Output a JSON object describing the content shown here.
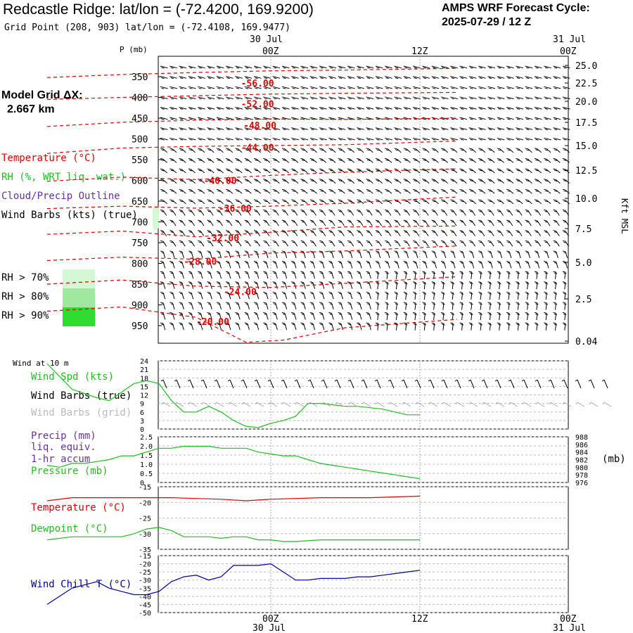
{
  "header": {
    "title": "Redcastle Ridge:  lat/lon = (-72.4200, 169.9200)",
    "subtitle": "Grid Point (208, 903) lat/lon = (-72.4108, 169.9477)",
    "cycle_line1": "AMPS WRF Forecast Cycle:",
    "cycle_line2": "2025-07-29 / 12  Z",
    "grid_dx_line1": "Model Grid ΔX:",
    "grid_dx_line2": "2.667 km"
  },
  "colors": {
    "temperature": "#dd0000",
    "rh": "#22bb22",
    "cloud": "#663399",
    "wind": "#000000",
    "grid_wind": "#aaaaaa",
    "pressure": "#22bb22",
    "dewpoint": "#22bb22",
    "windchill": "#000099",
    "rh70": "#d4f7d4",
    "rh80": "#a0e8a0",
    "rh90": "#2fdc2f"
  },
  "upper_panel": {
    "p_label": "P (mb)",
    "time_top": [
      {
        "day": "30 Jul",
        "hour": "00Z"
      },
      {
        "day": "",
        "hour": "12Z"
      },
      {
        "day": "31 Jul",
        "hour": "00Z"
      }
    ],
    "right_axis_label": "Kft MSL",
    "legend": {
      "temperature": "Temperature (°C)",
      "rh": "RH (%, WRT liq. wat.)",
      "cloud": "Cloud/Precip Outline",
      "wind": "Wind Barbs (kts) (true)",
      "rh70": "RH > 70%",
      "rh80": "RH > 80%",
      "rh90": "RH > 90%"
    }
  },
  "wind10m": {
    "title": "Wind at 10 m",
    "spd_label": "Wind Spd (kts)",
    "barbs_true": "Wind Barbs (true)",
    "barbs_grid": "Wind Barbs (grid)"
  },
  "precip_panel": {
    "label1": "Precip (mm)",
    "label2": "liq. equiv.",
    "label3": "1-hr accum",
    "label4": "Pressure (mb)",
    "right_unit": "(mb)"
  },
  "temp_panel": {
    "label1": "Temperature (°C)",
    "label2": "Dewpoint (°C)"
  },
  "windchill_panel": {
    "label": "Wind Chill T (°C)"
  },
  "bottom_time": [
    {
      "hour": "00Z",
      "day": "30 Jul"
    },
    {
      "hour": "12Z",
      "day": ""
    },
    {
      "hour": "00Z",
      "day": "31 Jul"
    }
  ],
  "chart_data": [
    {
      "type": "contour",
      "name": "upper-air cross-section",
      "x_unit": "hours from 2025-07-29 12Z",
      "xlim": [
        -6,
        27
      ],
      "y_unit": "mb",
      "y_ticks": [
        350,
        400,
        450,
        500,
        550,
        600,
        650,
        700,
        750,
        800,
        850,
        900,
        950
      ],
      "right_ticks": [
        "25.0",
        "22.5",
        "20.0",
        "17.5",
        "15.0",
        "12.5",
        "10.0",
        "7.5",
        "5.0",
        "2.5",
        "0.04"
      ],
      "isotherms": [
        {
          "value": "-56.00",
          "label_x": 9.6,
          "label_p": 365,
          "points": [
            [
              -6,
              352
            ],
            [
              0,
              345
            ],
            [
              6,
              340
            ],
            [
              12,
              336
            ],
            [
              18,
              334
            ],
            [
              27,
              330
            ]
          ]
        },
        {
          "value": "-52.00",
          "label_x": 9.6,
          "label_p": 415,
          "points": [
            [
              -6,
              405
            ],
            [
              0,
              400
            ],
            [
              6,
              396
            ],
            [
              12,
              392
            ],
            [
              18,
              390
            ],
            [
              27,
              388
            ]
          ]
        },
        {
          "value": "-48.00",
          "label_x": 9.8,
          "label_p": 467,
          "points": [
            [
              -6,
              470
            ],
            [
              0,
              460
            ],
            [
              6,
              455
            ],
            [
              12,
              452
            ],
            [
              18,
              453
            ],
            [
              27,
              450
            ]
          ]
        },
        {
          "value": "-44.00",
          "label_x": 9.6,
          "label_p": 520,
          "points": [
            [
              -6,
              535
            ],
            [
              0,
              522
            ],
            [
              6,
              518
            ],
            [
              12,
              516
            ],
            [
              18,
              514
            ],
            [
              27,
              505
            ]
          ]
        },
        {
          "value": "-40.00",
          "label_x": 6.6,
          "label_p": 600,
          "points": [
            [
              -6,
              602
            ],
            [
              0,
              592
            ],
            [
              6,
              598
            ],
            [
              12,
              588
            ],
            [
              18,
              580
            ],
            [
              27,
              572
            ]
          ]
        },
        {
          "value": "-36.00",
          "label_x": 7.8,
          "label_p": 667,
          "points": [
            [
              -6,
              668
            ],
            [
              0,
              662
            ],
            [
              6,
              667
            ],
            [
              12,
              662
            ],
            [
              18,
              655
            ],
            [
              27,
              640
            ]
          ]
        },
        {
          "value": "-32.00",
          "label_x": 6.8,
          "label_p": 738,
          "points": [
            [
              -6,
              730
            ],
            [
              0,
              722
            ],
            [
              6,
              736
            ],
            [
              12,
              725
            ],
            [
              18,
              712
            ],
            [
              27,
              710
            ]
          ]
        },
        {
          "value": "-28.00",
          "label_x": 5.0,
          "label_p": 795,
          "points": [
            [
              -6,
              793
            ],
            [
              0,
              785
            ],
            [
              6,
              790
            ],
            [
              12,
              775
            ],
            [
              18,
              770
            ],
            [
              27,
              758
            ]
          ]
        },
        {
          "value": "-24.00",
          "label_x": 8.2,
          "label_p": 868,
          "points": [
            [
              -6,
              850
            ],
            [
              0,
              840
            ],
            [
              6,
              855
            ],
            [
              12,
              858
            ],
            [
              18,
              848
            ],
            [
              27,
              832
            ]
          ]
        },
        {
          "value": "-20.00",
          "label_x": 6.0,
          "label_p": 940,
          "points": [
            [
              -6,
              915
            ],
            [
              0,
              905
            ],
            [
              6,
              930
            ],
            [
              10,
              990
            ],
            [
              13,
              985
            ],
            [
              18,
              955
            ],
            [
              27,
              935
            ]
          ]
        }
      ],
      "rh_over_70": [
        {
          "x": [
            2.5,
            3.0
          ],
          "p": [
            660,
            720
          ]
        }
      ]
    },
    {
      "type": "line",
      "name": "Wind Spd (kts)",
      "ylim": [
        0,
        24
      ],
      "yticks": [
        0,
        3,
        6,
        9,
        12,
        15,
        18,
        21,
        24
      ],
      "series": [
        {
          "name": "Wind Spd (kts)",
          "points": [
            [
              -6,
              23
            ],
            [
              -4,
              14
            ],
            [
              -2,
              11
            ],
            [
              -1,
              10
            ],
            [
              0,
              13
            ],
            [
              1,
              16
            ],
            [
              2,
              17
            ],
            [
              3,
              16
            ],
            [
              4,
              10
            ],
            [
              5,
              6
            ],
            [
              6,
              6
            ],
            [
              7,
              8
            ],
            [
              8,
              6
            ],
            [
              9,
              3
            ],
            [
              10,
              1
            ],
            [
              11,
              0.5
            ],
            [
              12,
              2
            ],
            [
              13,
              3
            ],
            [
              14,
              4.5
            ],
            [
              15,
              9
            ],
            [
              16,
              9
            ],
            [
              17,
              8.5
            ],
            [
              18,
              8
            ],
            [
              19,
              8
            ],
            [
              20,
              7.5
            ],
            [
              21,
              7
            ],
            [
              22,
              6
            ],
            [
              23,
              5
            ],
            [
              24,
              5
            ]
          ]
        }
      ]
    },
    {
      "type": "line",
      "name": "Precip / Pressure",
      "left_ylim": [
        0,
        2.5
      ],
      "left_yticks": [
        "0",
        "0.5",
        "1.0",
        "1.5",
        "2.0",
        "2.5"
      ],
      "right_ylim": [
        976,
        988
      ],
      "right_yticks": [
        976,
        978,
        980,
        982,
        984,
        986,
        988
      ],
      "series": [
        {
          "name": "Pressure (mb)",
          "points": [
            [
              -6,
              980.5
            ],
            [
              -5,
              980
            ],
            [
              -4,
              981
            ],
            [
              -3,
              981
            ],
            [
              -2,
              981.5
            ],
            [
              -1,
              982
            ],
            [
              0,
              983
            ],
            [
              1,
              983
            ],
            [
              2,
              984
            ],
            [
              3,
              985
            ],
            [
              4,
              985
            ],
            [
              5,
              985.5
            ],
            [
              6,
              985.5
            ],
            [
              7,
              985.5
            ],
            [
              8,
              985
            ],
            [
              9,
              985
            ],
            [
              10,
              985
            ],
            [
              11,
              984
            ],
            [
              12,
              983.5
            ],
            [
              13,
              983
            ],
            [
              14,
              983
            ],
            [
              15,
              982
            ],
            [
              16,
              981
            ],
            [
              17,
              980.5
            ],
            [
              18,
              980
            ],
            [
              19,
              979.5
            ],
            [
              20,
              979
            ],
            [
              21,
              978.5
            ],
            [
              22,
              978
            ],
            [
              23,
              977.5
            ],
            [
              24,
              977
            ]
          ]
        }
      ]
    },
    {
      "type": "line",
      "name": "Temperature / Dewpoint",
      "ylim": [
        -35,
        -15
      ],
      "yticks": [
        -15,
        -20,
        -25,
        -30,
        -35
      ],
      "series": [
        {
          "name": "Temperature (°C)",
          "points": [
            [
              -6,
              -19.5
            ],
            [
              -4,
              -18.5
            ],
            [
              0,
              -18.5
            ],
            [
              4,
              -18.5
            ],
            [
              8,
              -19
            ],
            [
              10,
              -19.5
            ],
            [
              12,
              -19
            ],
            [
              16,
              -18.5
            ],
            [
              20,
              -18.5
            ],
            [
              24,
              -18
            ]
          ]
        },
        {
          "name": "Dewpoint (°C)",
          "points": [
            [
              -6,
              -32
            ],
            [
              -4,
              -31
            ],
            [
              -2,
              -31
            ],
            [
              0,
              -31
            ],
            [
              1,
              -30
            ],
            [
              2,
              -28.5
            ],
            [
              3,
              -28
            ],
            [
              4,
              -29
            ],
            [
              5,
              -31
            ],
            [
              6,
              -31
            ],
            [
              7,
              -31
            ],
            [
              8,
              -31.5
            ],
            [
              9,
              -31
            ],
            [
              10,
              -31
            ],
            [
              11,
              -32
            ],
            [
              12,
              -32
            ],
            [
              13,
              -32.5
            ],
            [
              14,
              -32.5
            ],
            [
              16,
              -32
            ],
            [
              18,
              -32
            ],
            [
              24,
              -32
            ]
          ]
        }
      ]
    },
    {
      "type": "line",
      "name": "Wind Chill T (°C)",
      "ylim": [
        -50,
        -15
      ],
      "yticks": [
        -15,
        -20,
        -25,
        -30,
        -35,
        -40,
        -45,
        -50
      ],
      "series": [
        {
          "name": "Wind Chill T (°C)",
          "points": [
            [
              -6,
              -45
            ],
            [
              -4,
              -35
            ],
            [
              -2,
              -31
            ],
            [
              -1,
              -35
            ],
            [
              0,
              -37
            ],
            [
              1,
              -39
            ],
            [
              2,
              -39
            ],
            [
              3,
              -37
            ],
            [
              4,
              -31
            ],
            [
              5,
              -28
            ],
            [
              6,
              -27
            ],
            [
              7,
              -30
            ],
            [
              8,
              -28
            ],
            [
              9,
              -21
            ],
            [
              10,
              -21
            ],
            [
              11,
              -21
            ],
            [
              12,
              -20
            ],
            [
              13,
              -25
            ],
            [
              14,
              -30
            ],
            [
              15,
              -30
            ],
            [
              16,
              -29
            ],
            [
              17,
              -29
            ],
            [
              18,
              -29
            ],
            [
              19,
              -28
            ],
            [
              20,
              -28
            ],
            [
              21,
              -27
            ],
            [
              22,
              -26
            ],
            [
              23,
              -25
            ],
            [
              24,
              -24
            ]
          ]
        }
      ]
    }
  ]
}
